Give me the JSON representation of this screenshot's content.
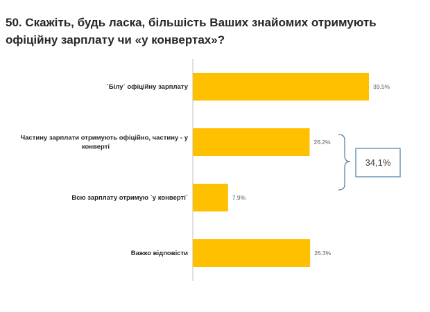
{
  "title": "50. Скажіть, будь ласка, більшість Ваших знайомих отримують офіційну зарплату чи «у конвертах»?",
  "colors": {
    "bar": "#FFC000",
    "axis": "#BFBFBF",
    "bracket": "#4A7FA5",
    "callout_border": "#4A7FA5"
  },
  "callout": {
    "text": "34,1%",
    "spans_categories": [
      1,
      2
    ]
  },
  "chart_data": {
    "type": "bar",
    "orientation": "horizontal",
    "categories": [
      [
        "`Білу` офіційну зарплату"
      ],
      [
        "Частину зарплати отримують офіційно, частину - у",
        "конверті"
      ],
      [
        "Всю зарплату отримую `у конверті`"
      ],
      [
        "Важко відповісти"
      ]
    ],
    "values": [
      39.5,
      26.2,
      7.9,
      26.3
    ],
    "value_labels": [
      "39.5%",
      "26.2%",
      "7.9%",
      "26.3%"
    ],
    "xlim": [
      0,
      100
    ],
    "grid": false,
    "legend": "none"
  }
}
